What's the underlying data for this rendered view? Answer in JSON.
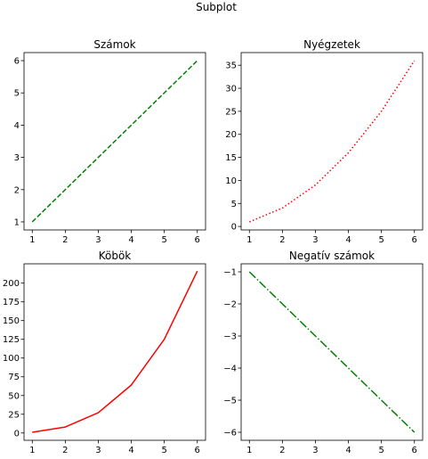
{
  "figure": {
    "suptitle": "Subplot"
  },
  "chart_data": [
    {
      "type": "line",
      "title": "Számok",
      "x": [
        1,
        2,
        3,
        4,
        5,
        6
      ],
      "series": [
        {
          "values": [
            1,
            2,
            3,
            4,
            5,
            6
          ],
          "color": "#008000",
          "linestyle": "dashed"
        }
      ],
      "xlim": [
        0.75,
        6.25
      ],
      "ylim": [
        0.75,
        6.25
      ],
      "xticks": [
        1,
        2,
        3,
        4,
        5,
        6
      ],
      "yticks": [
        1,
        2,
        3,
        4,
        5,
        6
      ],
      "grid": false
    },
    {
      "type": "line",
      "title": "Nyégzetek",
      "x": [
        1,
        2,
        3,
        4,
        5,
        6
      ],
      "series": [
        {
          "values": [
            1,
            4,
            9,
            16,
            25,
            36
          ],
          "color": "#ff0000",
          "linestyle": "dotted"
        }
      ],
      "xlim": [
        0.75,
        6.25
      ],
      "ylim": [
        -0.75,
        37.75
      ],
      "xticks": [
        1,
        2,
        3,
        4,
        5,
        6
      ],
      "yticks": [
        0,
        5,
        10,
        15,
        20,
        25,
        30,
        35
      ],
      "grid": false
    },
    {
      "type": "line",
      "title": "Köbök",
      "x": [
        1,
        2,
        3,
        4,
        5,
        6
      ],
      "series": [
        {
          "values": [
            1,
            8,
            27,
            64,
            125,
            216
          ],
          "color": "#ff0000",
          "linestyle": "solid"
        }
      ],
      "xlim": [
        0.75,
        6.25
      ],
      "ylim": [
        -9.75,
        225.75
      ],
      "xticks": [
        1,
        2,
        3,
        4,
        5,
        6
      ],
      "yticks": [
        0,
        25,
        50,
        75,
        100,
        125,
        150,
        175,
        200
      ],
      "grid": false
    },
    {
      "type": "line",
      "title": "Negatív számok",
      "x": [
        1,
        2,
        3,
        4,
        5,
        6
      ],
      "series": [
        {
          "values": [
            -1,
            -2,
            -3,
            -4,
            -5,
            -6
          ],
          "color": "#008000",
          "linestyle": "dashdot"
        }
      ],
      "xlim": [
        0.75,
        6.25
      ],
      "ylim": [
        -6.25,
        -0.75
      ],
      "xticks": [
        1,
        2,
        3,
        4,
        5,
        6
      ],
      "yticks": [
        -1,
        -2,
        -3,
        -4,
        -5,
        -6
      ],
      "grid": false
    }
  ]
}
